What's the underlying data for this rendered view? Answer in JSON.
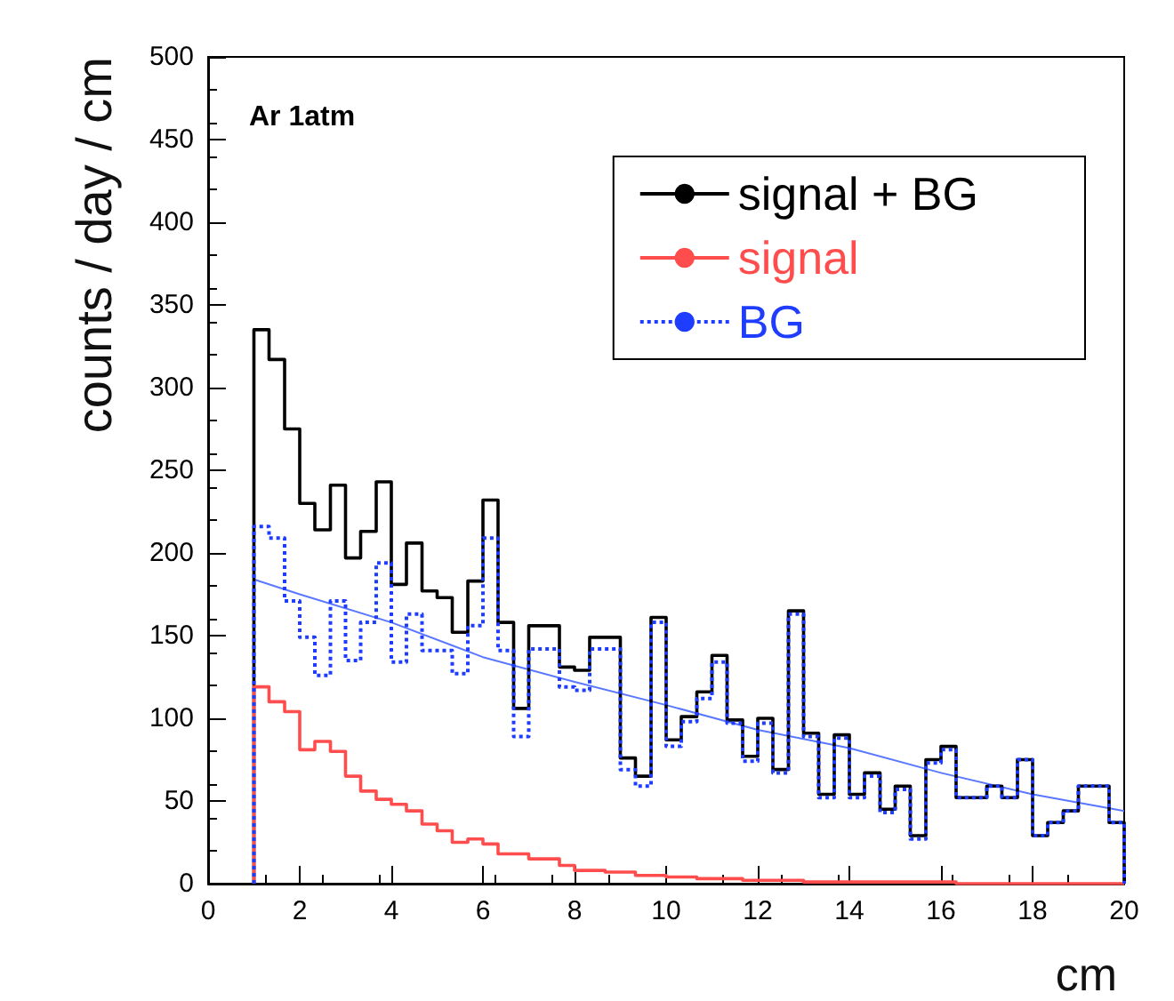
{
  "chart_data": {
    "type": "histogram",
    "ylabel": "counts / day / cm",
    "xlabel": "cm",
    "annotations": [
      "Ar 1atm"
    ],
    "bins": [
      1,
      1.33,
      1.67,
      2,
      2.33,
      2.67,
      3,
      3.33,
      3.67,
      4,
      4.33,
      4.67,
      5,
      5.33,
      5.67,
      6,
      6.33,
      6.67,
      7,
      7.33,
      7.67,
      8,
      8.33,
      8.67,
      9,
      9.33,
      9.67,
      10,
      10.33,
      10.67,
      11,
      11.33,
      11.67,
      12,
      12.33,
      12.67,
      13,
      13.33,
      13.67,
      14,
      14.33,
      14.67,
      15,
      15.33,
      15.67,
      16,
      16.33,
      16.67,
      17,
      17.33,
      17.67,
      18,
      18.33,
      18.67,
      19,
      19.33,
      19.67,
      20
    ],
    "series": [
      {
        "name": "signal + BG",
        "color": "#000000",
        "line_style": "solid",
        "values": [
          335,
          317,
          275,
          230,
          214,
          241,
          197,
          213,
          243,
          181,
          206,
          177,
          173,
          152,
          183,
          232,
          158,
          106,
          156,
          156,
          131,
          129,
          149,
          149,
          76,
          65,
          161,
          87,
          101,
          116,
          138,
          99,
          77,
          100,
          69,
          165,
          91,
          54,
          90,
          54,
          67,
          45,
          59,
          29,
          75,
          83,
          52,
          52,
          59,
          52,
          75,
          29,
          37,
          44,
          59,
          59,
          37
        ]
      },
      {
        "name": "signal",
        "color": "#ff4d4d",
        "line_style": "solid",
        "values": [
          119,
          110,
          104,
          81,
          86,
          80,
          65,
          56,
          51,
          48,
          44,
          36,
          32,
          25,
          27,
          24,
          18,
          18,
          15,
          15,
          11,
          8,
          8,
          7,
          7,
          5,
          5,
          4,
          4,
          3,
          3,
          3,
          2,
          2,
          2,
          2,
          1,
          1,
          1,
          1,
          1,
          1,
          1,
          1,
          1,
          1,
          0,
          0,
          0,
          0,
          0,
          0,
          0,
          0,
          0,
          0,
          0
        ]
      },
      {
        "name": "BG",
        "color": "#1f3dff",
        "line_style": "dotted",
        "values": [
          216,
          209,
          171,
          149,
          126,
          171,
          135,
          158,
          194,
          134,
          163,
          141,
          141,
          127,
          156,
          209,
          141,
          89,
          142,
          142,
          119,
          117,
          142,
          142,
          69,
          59,
          158,
          83,
          98,
          112,
          134,
          97,
          74,
          97,
          67,
          163,
          89,
          52,
          88,
          52,
          65,
          43,
          57,
          27,
          73,
          81,
          52,
          52,
          59,
          52,
          75,
          29,
          37,
          44,
          59,
          59,
          37
        ]
      },
      {
        "type": "line",
        "color": "#5a78ff",
        "line_style": "solid",
        "x": [
          1,
          2,
          4,
          6,
          8,
          10,
          12,
          14,
          16,
          18,
          20
        ],
        "values": [
          184,
          175,
          158,
          137,
          122,
          108,
          93,
          82,
          67,
          54,
          44
        ]
      }
    ],
    "xlim": [
      0,
      20
    ],
    "xticks": [
      0,
      2,
      4,
      6,
      8,
      10,
      12,
      14,
      16,
      18,
      20
    ],
    "ylim": [
      0,
      500
    ],
    "yticks": [
      0,
      50,
      100,
      150,
      200,
      250,
      300,
      350,
      400,
      450,
      500
    ],
    "grid": false,
    "legend": "top right"
  }
}
